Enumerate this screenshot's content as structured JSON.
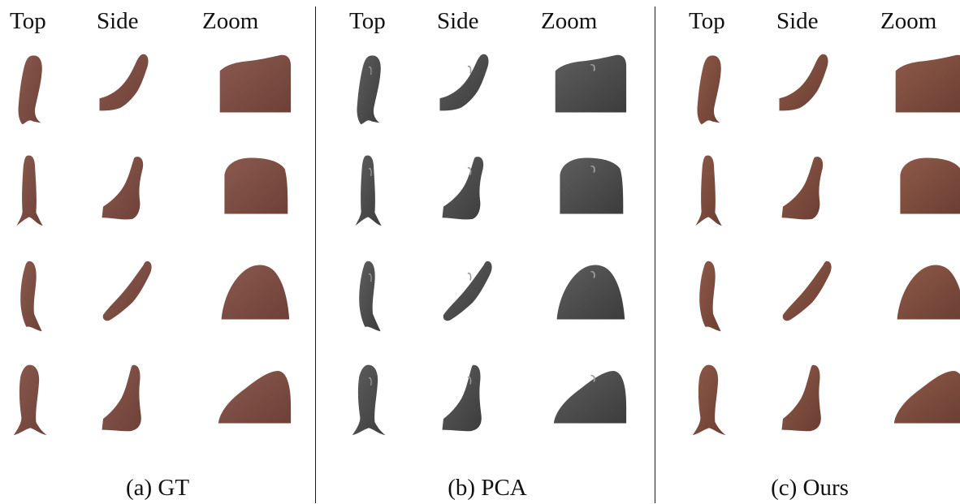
{
  "column_headers": [
    "Top",
    "Side",
    "Zoom"
  ],
  "panels": [
    {
      "caption": "(a) GT",
      "rendering": "textured",
      "skin_color": "#8a5a4e",
      "shade_color": "#6e4038"
    },
    {
      "caption": "(b) PCA",
      "rendering": "untextured",
      "skin_color": "#5e5e5e",
      "shade_color": "#3c3c3c"
    },
    {
      "caption": "(c) Ours",
      "rendering": "textured",
      "skin_color": "#8e5a48",
      "shade_color": "#6a3e33"
    }
  ]
}
